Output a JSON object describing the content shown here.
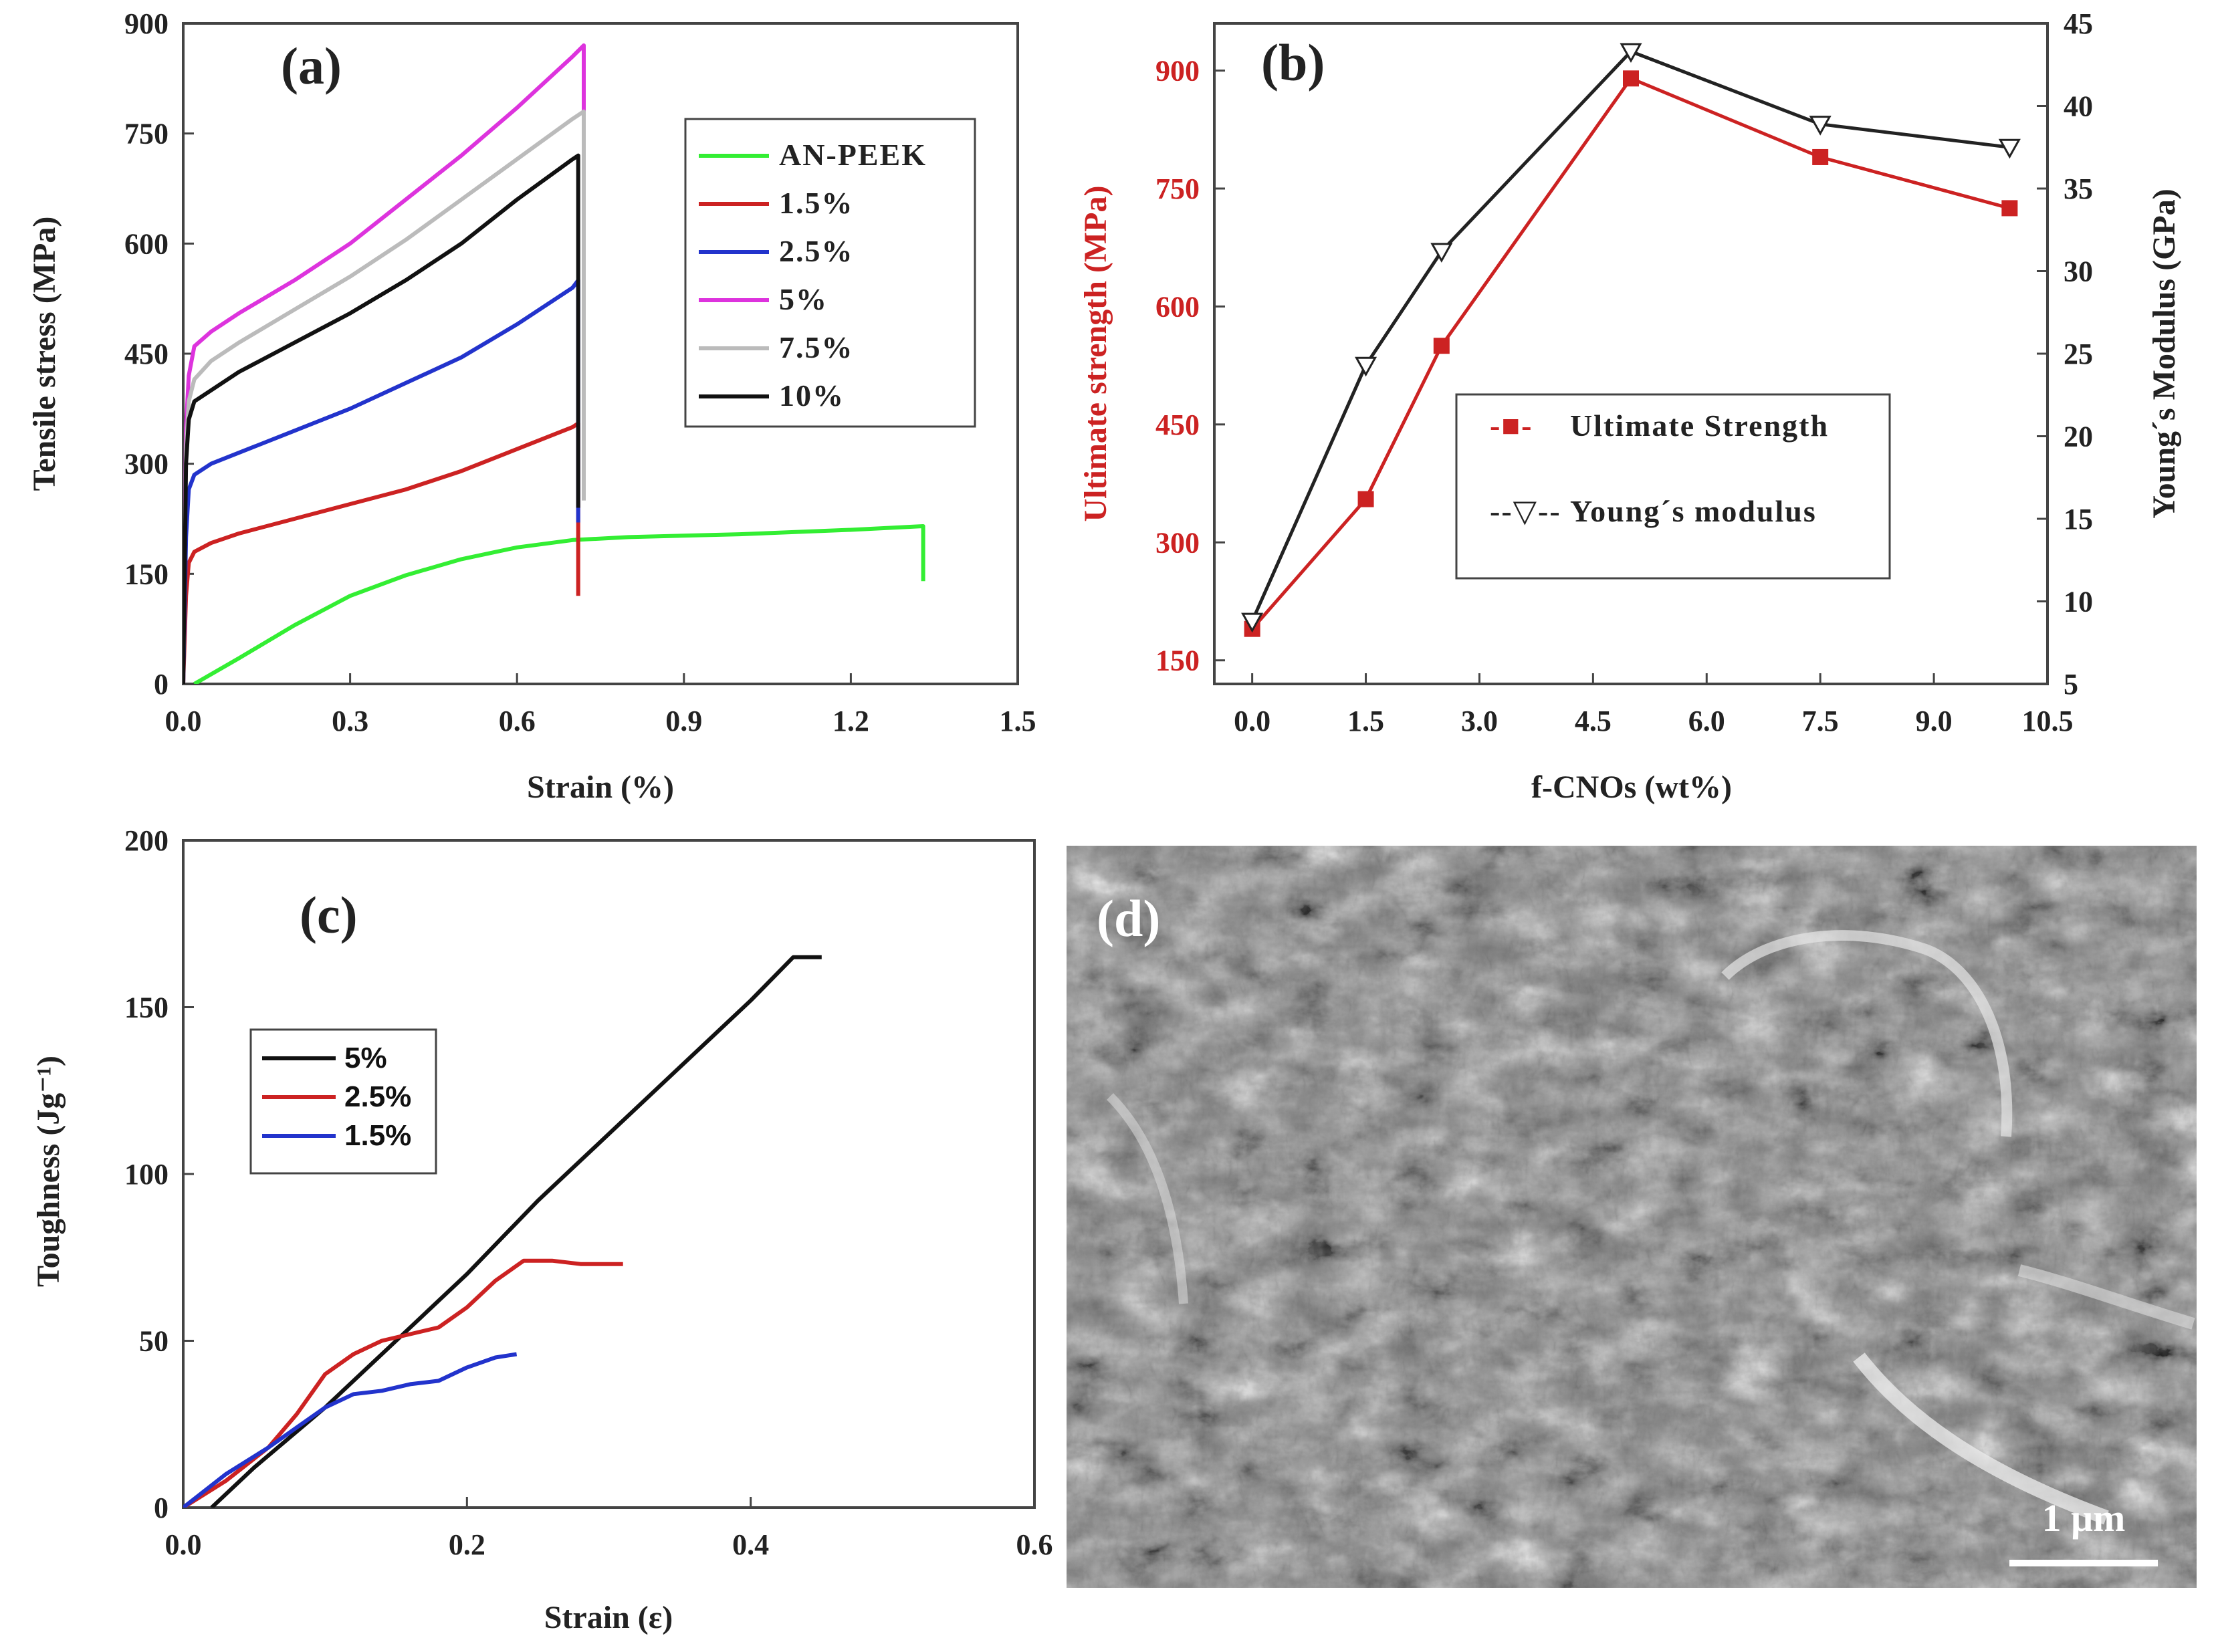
{
  "chart_data": [
    {
      "panel": "(a)",
      "type": "line",
      "xlabel": "Strain (%)",
      "ylabel": "Tensile stress (MPa)",
      "xlim": [
        0,
        1.5
      ],
      "ylim": [
        0,
        900
      ],
      "xticks": [
        "0.0",
        "0.3",
        "0.6",
        "0.9",
        "1.2",
        "1.5"
      ],
      "yticks": [
        "0",
        "150",
        "300",
        "450",
        "600",
        "750",
        "900"
      ],
      "legend": "top-right",
      "series": [
        {
          "name": "AN-PEEK",
          "color": "#33ee33",
          "x": [
            0.02,
            0.1,
            0.2,
            0.3,
            0.4,
            0.5,
            0.6,
            0.7,
            0.8,
            1.0,
            1.2,
            1.33,
            1.33
          ],
          "y": [
            0,
            35,
            80,
            120,
            148,
            170,
            186,
            196,
            200,
            204,
            210,
            215,
            140
          ]
        },
        {
          "name": "1.5%",
          "color": "#cc2222",
          "x": [
            0.0,
            0.005,
            0.01,
            0.02,
            0.05,
            0.1,
            0.2,
            0.3,
            0.4,
            0.5,
            0.6,
            0.7,
            0.71,
            0.71
          ],
          "y": [
            0,
            120,
            165,
            180,
            192,
            205,
            225,
            245,
            265,
            290,
            320,
            350,
            355,
            120
          ]
        },
        {
          "name": "2.5%",
          "color": "#2233cc",
          "x": [
            0.0,
            0.005,
            0.01,
            0.02,
            0.05,
            0.1,
            0.2,
            0.3,
            0.4,
            0.5,
            0.6,
            0.7,
            0.71,
            0.71
          ],
          "y": [
            0,
            200,
            265,
            285,
            300,
            315,
            345,
            375,
            410,
            445,
            490,
            540,
            550,
            220
          ]
        },
        {
          "name": "5%",
          "color": "#dd33dd",
          "x": [
            0.0,
            0.005,
            0.01,
            0.02,
            0.05,
            0.1,
            0.2,
            0.3,
            0.4,
            0.5,
            0.6,
            0.7,
            0.72,
            0.72
          ],
          "y": [
            0,
            350,
            420,
            460,
            480,
            505,
            550,
            600,
            660,
            720,
            785,
            855,
            870,
            260
          ]
        },
        {
          "name": "7.5%",
          "color": "#bbbbbb",
          "x": [
            0.0,
            0.005,
            0.01,
            0.02,
            0.05,
            0.1,
            0.2,
            0.3,
            0.4,
            0.5,
            0.6,
            0.7,
            0.72,
            0.72
          ],
          "y": [
            0,
            320,
            385,
            415,
            440,
            465,
            510,
            555,
            605,
            660,
            715,
            770,
            780,
            250
          ]
        },
        {
          "name": "10%",
          "color": "#111111",
          "x": [
            0.0,
            0.005,
            0.01,
            0.02,
            0.05,
            0.1,
            0.2,
            0.3,
            0.4,
            0.5,
            0.6,
            0.7,
            0.71,
            0.71
          ],
          "y": [
            0,
            300,
            360,
            385,
            400,
            425,
            465,
            505,
            550,
            600,
            660,
            715,
            720,
            240
          ]
        }
      ]
    },
    {
      "panel": "(b)",
      "type": "line",
      "xlabel": "f-CNOs (wt%)",
      "ylabel": "Ultimate strength (MPa)",
      "ylabel_right": "Young´s Modulus (GPa)",
      "xlim": [
        -0.5,
        10.5
      ],
      "ylim": [
        120,
        960
      ],
      "ylim_right": [
        5,
        45
      ],
      "xticks": [
        "0.0",
        "1.5",
        "3.0",
        "4.5",
        "6.0",
        "7.5",
        "9.0",
        "10.5"
      ],
      "yticks": [
        "150",
        "300",
        "450",
        "600",
        "750",
        "900"
      ],
      "yticks_right": [
        "5",
        "10",
        "15",
        "20",
        "25",
        "30",
        "35",
        "40",
        "45"
      ],
      "legend": "center-right",
      "series": [
        {
          "name": "Ultimate Strength",
          "legend_label": "Ultimate Strength",
          "legend_marker": "-■-",
          "axis": "left",
          "color": "#cc2222",
          "x": [
            0,
            1.5,
            2.5,
            5,
            7.5,
            10
          ],
          "y": [
            190,
            355,
            550,
            890,
            790,
            725
          ]
        },
        {
          "name": "Young´s modulus",
          "legend_label": "Young´s modulus",
          "legend_marker": "--▽--",
          "axis": "right",
          "color": "#222222",
          "x": [
            0,
            1.5,
            2.5,
            5,
            7.5,
            10
          ],
          "y": [
            8.8,
            24.3,
            31.2,
            43.3,
            38.9,
            37.5
          ]
        }
      ]
    },
    {
      "panel": "(c)",
      "type": "line",
      "xlabel": "Strain (ε)",
      "ylabel": "Toughness (Jg⁻¹)",
      "xlim": [
        0,
        0.6
      ],
      "ylim": [
        0,
        200
      ],
      "xticks": [
        "0.0",
        "0.2",
        "0.4",
        "0.6"
      ],
      "yticks": [
        "0",
        "50",
        "100",
        "150",
        "200"
      ],
      "legend": "center-left",
      "series": [
        {
          "name": "5%",
          "color": "#111111",
          "x": [
            0.02,
            0.05,
            0.1,
            0.15,
            0.2,
            0.25,
            0.3,
            0.35,
            0.4,
            0.43,
            0.45
          ],
          "y": [
            0,
            12,
            30,
            50,
            70,
            92,
            112,
            132,
            152,
            165,
            165
          ]
        },
        {
          "name": "2.5%",
          "color": "#cc2222",
          "x": [
            0,
            0.03,
            0.06,
            0.08,
            0.1,
            0.12,
            0.14,
            0.16,
            0.18,
            0.2,
            0.22,
            0.24,
            0.26,
            0.28,
            0.31
          ],
          "y": [
            0,
            8,
            18,
            28,
            40,
            46,
            50,
            52,
            54,
            60,
            68,
            74,
            74,
            73,
            73
          ]
        },
        {
          "name": "1.5%",
          "color": "#2233cc",
          "x": [
            0,
            0.03,
            0.06,
            0.08,
            0.1,
            0.12,
            0.14,
            0.16,
            0.18,
            0.2,
            0.22,
            0.235
          ],
          "y": [
            0,
            10,
            18,
            24,
            30,
            34,
            35,
            37,
            38,
            42,
            45,
            46
          ]
        }
      ]
    }
  ],
  "panels": {
    "a_label": "(a)",
    "b_label": "(b)",
    "c_label": "(c)",
    "d_label": "(d)"
  },
  "sem_image": {
    "description_label": "(d)",
    "scale_bar": "1 μm"
  }
}
